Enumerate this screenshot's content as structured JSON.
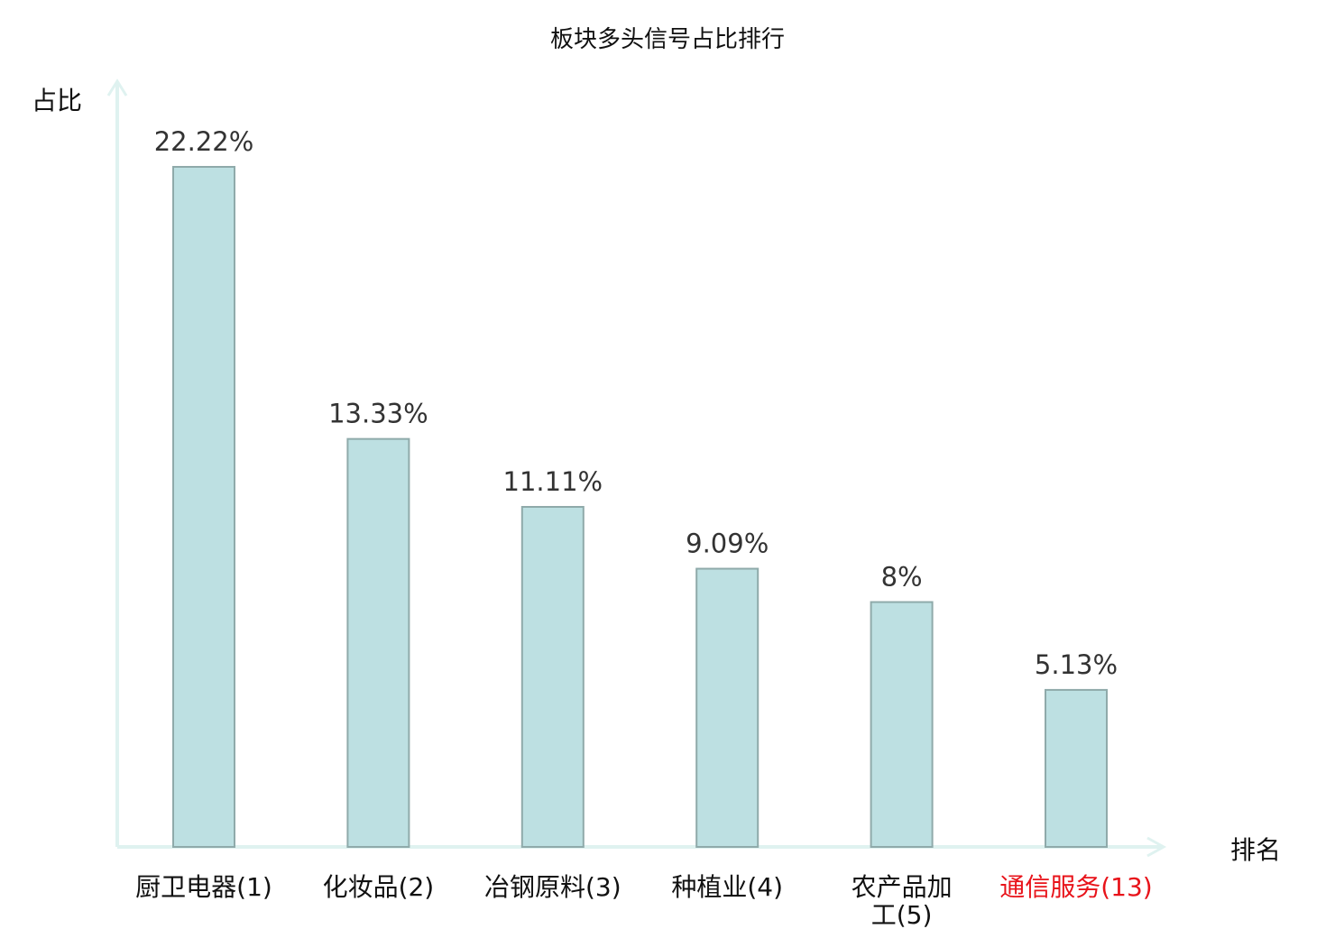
{
  "chart_data": {
    "type": "bar",
    "title": "板块多头信号占比排行",
    "xlabel": "排名",
    "ylabel": "占比",
    "categories": [
      "厨卫电器(1)",
      "化妆品(2)",
      "冶钢原料(3)",
      "种植业(4)",
      "农产品加工(5)",
      "通信服务(13)"
    ],
    "category_lines": [
      [
        "厨卫电器(1)"
      ],
      [
        "化妆品(2)"
      ],
      [
        "冶钢原料(3)"
      ],
      [
        "种植业(4)"
      ],
      [
        "农产品加",
        "工(5)"
      ],
      [
        "通信服务(13)"
      ]
    ],
    "values": [
      22.22,
      13.33,
      11.11,
      9.09,
      8,
      5.13
    ],
    "data_labels": [
      "22.22%",
      "13.33%",
      "11.11%",
      "9.09%",
      "8%",
      "5.13%"
    ],
    "highlight_index": 5,
    "grid": false,
    "legend": "none",
    "ylim": [
      0,
      24.5
    ],
    "colors": {
      "bar_fill": "#bde0e2",
      "bar_stroke": "#8faaaa",
      "axis": "#dff2f0",
      "highlight_label": "#e8131a",
      "label": "#111111"
    }
  }
}
